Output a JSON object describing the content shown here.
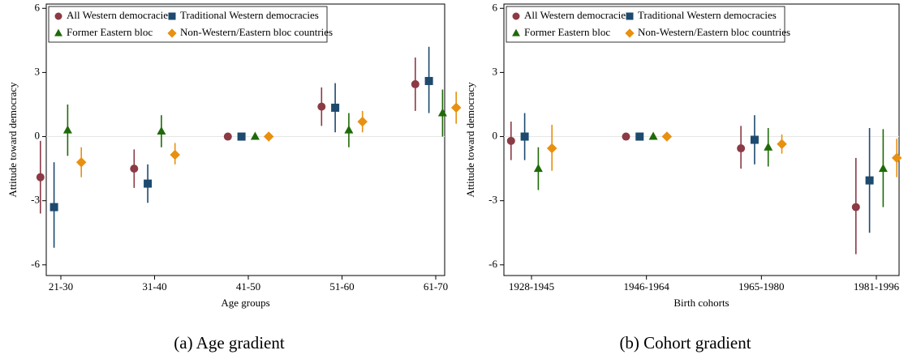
{
  "chart_data": [
    {
      "type": "errorbar",
      "caption": "(a) Age gradient",
      "xlabel": "Age groups",
      "ylabel": "Attitude toward democracy",
      "categories": [
        "21-30",
        "31-40",
        "41-50",
        "51-60",
        "61-70"
      ],
      "ylim": [
        -6.5,
        6.2
      ],
      "yticks": [
        -6,
        -3,
        0,
        3,
        6
      ],
      "hline": 0,
      "series": [
        {
          "name": "All Western democracies",
          "color": "#8c3a45",
          "marker": "circle",
          "values": [
            -1.9,
            -1.5,
            0,
            1.4,
            2.45
          ],
          "lower": [
            -3.6,
            -2.4,
            0,
            0.5,
            1.2
          ],
          "upper": [
            -0.2,
            -0.6,
            0,
            2.3,
            3.7
          ]
        },
        {
          "name": "Traditional Western democracies",
          "color": "#1d4a6e",
          "marker": "square",
          "values": [
            -3.3,
            -2.2,
            0,
            1.35,
            2.6
          ],
          "lower": [
            -5.2,
            -3.1,
            0,
            0.2,
            1.1
          ],
          "upper": [
            -1.2,
            -1.3,
            0,
            2.5,
            4.2
          ]
        },
        {
          "name": "Former Eastern bloc",
          "color": "#1f6a08",
          "marker": "triangle",
          "values": [
            0.3,
            0.25,
            0,
            0.3,
            1.1
          ],
          "lower": [
            -0.9,
            -0.5,
            0,
            -0.5,
            0
          ],
          "upper": [
            1.5,
            1.0,
            0,
            1.1,
            2.2
          ]
        },
        {
          "name": "Non-Western/Eastern bloc countries",
          "color": "#e8900f",
          "marker": "diamond",
          "values": [
            -1.2,
            -0.85,
            0,
            0.7,
            1.35
          ],
          "lower": [
            -1.9,
            -1.3,
            0,
            0.2,
            0.6
          ],
          "upper": [
            -0.5,
            -0.3,
            0,
            1.2,
            2.1
          ]
        }
      ]
    },
    {
      "type": "errorbar",
      "caption": "(b) Cohort gradient",
      "xlabel": "Birth cohorts",
      "ylabel": "Attitude toward democracy",
      "categories": [
        "1928-1945",
        "1946-1964",
        "1965-1980",
        "1981-1996"
      ],
      "ylim": [
        -6.5,
        6.2
      ],
      "yticks": [
        -6,
        -3,
        0,
        3,
        6
      ],
      "hline": 0,
      "series": [
        {
          "name": "All Western democracies",
          "color": "#8c3a45",
          "marker": "circle",
          "values": [
            -0.2,
            0,
            -0.55,
            -3.3
          ],
          "lower": [
            -1.1,
            0,
            -1.5,
            -5.5
          ],
          "upper": [
            0.7,
            0,
            0.5,
            -1.0
          ]
        },
        {
          "name": "Traditional Western democracies",
          "color": "#1d4a6e",
          "marker": "square",
          "values": [
            0,
            0,
            -0.15,
            -2.05
          ],
          "lower": [
            -1.1,
            0,
            -1.3,
            -4.5
          ],
          "upper": [
            1.1,
            0,
            1.0,
            0.4
          ]
        },
        {
          "name": "Former Eastern bloc",
          "color": "#1f6a08",
          "marker": "triangle",
          "values": [
            -1.5,
            0,
            -0.5,
            -1.5
          ],
          "lower": [
            -2.5,
            0,
            -1.4,
            -3.3
          ],
          "upper": [
            -0.5,
            0,
            0.4,
            0.35
          ]
        },
        {
          "name": "Non-Western/Eastern bloc countries",
          "color": "#e8900f",
          "marker": "diamond",
          "values": [
            -0.55,
            0,
            -0.35,
            -1.0
          ],
          "lower": [
            -1.6,
            0,
            -0.8,
            -1.9
          ],
          "upper": [
            0.55,
            0,
            0.1,
            -0.1
          ]
        }
      ]
    }
  ]
}
